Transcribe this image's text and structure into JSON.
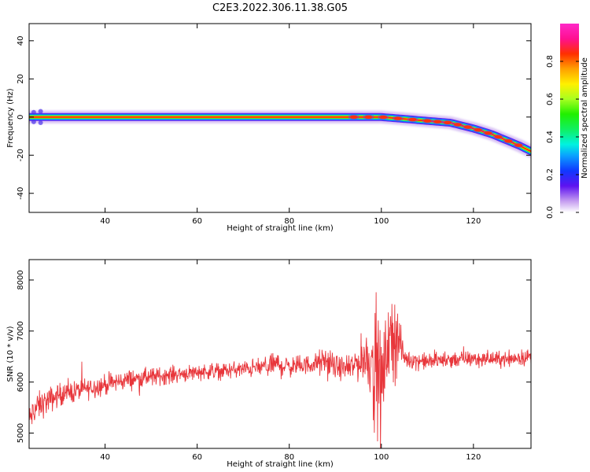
{
  "title": "C2E3.2022.306.11.38.G05",
  "chart_data": [
    {
      "type": "heatmap",
      "xlabel": "Height of straight line (km)",
      "ylabel": "Frequency (Hz)",
      "xlim": [
        23.5,
        132.5
      ],
      "ylim": [
        -50,
        49
      ],
      "xticks": [
        40,
        60,
        80,
        100,
        120
      ],
      "yticks": [
        -40,
        -20,
        0,
        20,
        40
      ],
      "colorbar": {
        "label": "Normalized spectral amplitude",
        "range": [
          0,
          1
        ],
        "ticks": [
          "0.0",
          "0.2",
          "0.4",
          "0.6",
          "0.8"
        ],
        "colormap": "gist_ncar (purple-blue-cyan-green-yellow-orange-red-magenta)"
      },
      "ridge": {
        "height_km": [
          23.5,
          90,
          95,
          100,
          105,
          110,
          115,
          120,
          124,
          128,
          130,
          132.5
        ],
        "frequency_hz": [
          0,
          0,
          0,
          0,
          -1,
          -2,
          -3,
          -6,
          -9,
          -13,
          -15,
          -18
        ]
      }
    },
    {
      "type": "line",
      "xlabel": "Height of straight line (km)",
      "ylabel": "SNR (10 * v/v)",
      "xlim": [
        23.5,
        132.5
      ],
      "ylim": [
        4700,
        8400
      ],
      "xticks": [
        40,
        60,
        80,
        100,
        120
      ],
      "yticks": [
        5000,
        6000,
        7000,
        8000
      ],
      "series": [
        {
          "color": "#e8363b",
          "x": [
            23.5,
            25,
            28,
            30,
            35,
            40,
            45,
            50,
            55,
            60,
            65,
            70,
            75,
            77,
            80,
            85,
            88,
            90,
            93,
            95,
            97,
            98,
            99,
            100,
            101,
            102,
            103,
            104,
            105,
            110,
            115,
            120,
            125,
            130,
            132.5
          ],
          "y": [
            5250,
            5500,
            5650,
            5750,
            5850,
            5950,
            6050,
            6100,
            6150,
            6200,
            6220,
            6250,
            6300,
            6350,
            6300,
            6350,
            6400,
            6300,
            6250,
            6400,
            6500,
            6400,
            6200,
            5800,
            6600,
            6700,
            7000,
            6800,
            6450,
            6400,
            6450,
            6450,
            6450,
            6480,
            6500
          ],
          "noise_amplitude": [
            250,
            250,
            230,
            200,
            190,
            180,
            170,
            160,
            150,
            140,
            140,
            150,
            170,
            250,
            180,
            160,
            280,
            200,
            200,
            350,
            500,
            800,
            1200,
            1000,
            600,
            700,
            900,
            400,
            150,
            150,
            140,
            140,
            140,
            140,
            140
          ]
        }
      ]
    }
  ]
}
